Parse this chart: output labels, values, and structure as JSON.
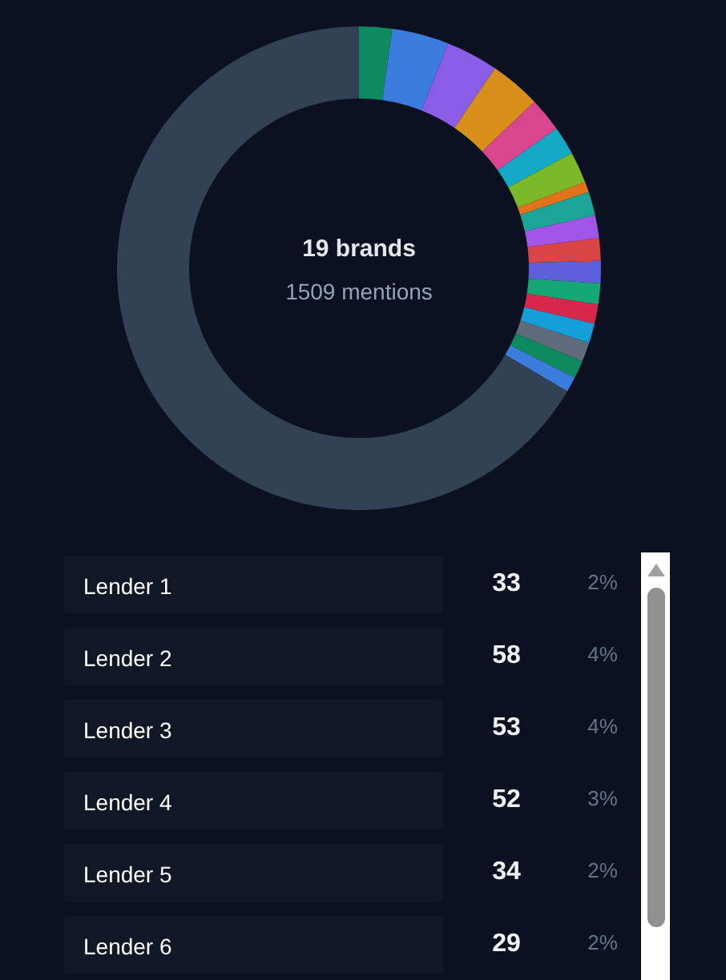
{
  "chart_data": [
    {
      "type": "donut",
      "annotations": [
        "19 brands",
        "1509 mentions"
      ],
      "categories": [
        null,
        null,
        null,
        null,
        null,
        null,
        null,
        null,
        null,
        null,
        null,
        null,
        null,
        null,
        null,
        null,
        null,
        null,
        null
      ],
      "values": [
        2.2,
        3.8,
        3.5,
        3.4,
        2.3,
        1.9,
        2.1,
        0.7,
        1.6,
        1.5,
        1.5,
        1.5,
        1.4,
        1.3,
        1.3,
        1.3,
        1.2,
        1.0,
        66.5
      ],
      "colors": [
        "#0d8a5f",
        "#3b7ddd",
        "#8b5ce6",
        "#d9901a",
        "#d9468f",
        "#14a9c4",
        "#7cb92a",
        "#e2731c",
        "#1ba596",
        "#a256e8",
        "#d94444",
        "#5d5fdb",
        "#16a777",
        "#d8284b",
        "#159fd8",
        "#5e6b7b",
        "#0e8a5f",
        "#3b7ddd",
        "#334155"
      ]
    },
    {
      "type": "other",
      "annotations": [
        "Lender 1",
        "33",
        "2%",
        "Lender 2",
        "58",
        "4%",
        "Lender 3",
        "53",
        "4%",
        "Lender 4",
        "52",
        "3%",
        "Lender 5",
        "34",
        "2%",
        "Lender 6",
        "29",
        "2%"
      ]
    }
  ]
}
